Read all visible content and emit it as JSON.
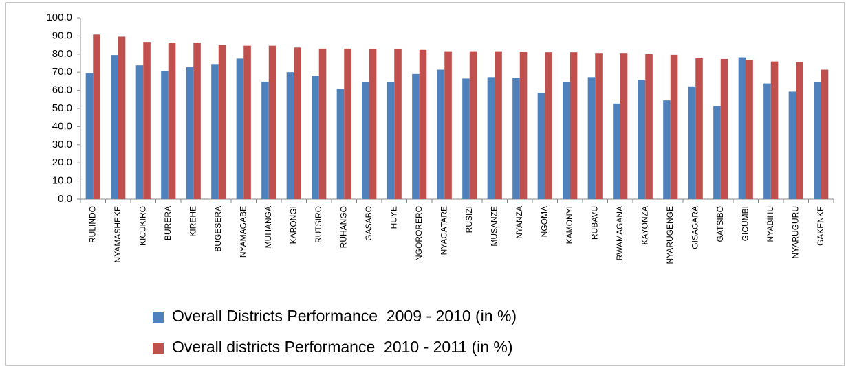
{
  "chart_data": {
    "type": "bar",
    "categories": [
      "RULINDO",
      "NYAMASHEKE",
      "KICUKIRO",
      "BURERA",
      "KIREHE",
      "BUGESERA",
      "NYAMAGABE",
      "MUHANGA",
      "KARONGI",
      "RUTSIRO",
      "RUHANGO",
      "GASABO",
      "HUYE",
      "NGORORERO",
      "NYAGATARE",
      "RUSIZI",
      "MUSANZE",
      "NYANZA",
      "NGOMA",
      "KAMONYI",
      "RUBAVU",
      "RWAMAGANA",
      "KAYONZA",
      "NYARUGENGE",
      "GISAGARA",
      "GATSIBO",
      "GICUMBI",
      "NYABIHU",
      "NYARUGURU",
      "GAKENKE"
    ],
    "series": [
      {
        "name": "Overall Districts Performance  2009 - 2010 (in %)",
        "color": "#4f81bd",
        "values": [
          69.5,
          79.5,
          73.8,
          70.6,
          72.7,
          74.5,
          77.5,
          64.8,
          70.0,
          68.0,
          60.8,
          64.5,
          64.5,
          69.0,
          71.4,
          66.5,
          67.3,
          67.0,
          58.7,
          64.5,
          67.3,
          52.7,
          65.8,
          54.5,
          62.2,
          51.3,
          78.2,
          63.8,
          59.3,
          64.5
        ]
      },
      {
        "name": "Overall districts Performance  2010 - 2011 (in %)",
        "color": "#c0504d",
        "values": [
          90.8,
          89.6,
          86.7,
          86.3,
          86.3,
          85.0,
          84.6,
          84.6,
          83.6,
          83.0,
          83.0,
          82.7,
          82.7,
          82.3,
          81.6,
          81.6,
          81.6,
          81.3,
          81.0,
          81.0,
          80.6,
          80.6,
          80.0,
          79.6,
          77.7,
          77.3,
          76.9,
          75.9,
          75.6,
          71.4
        ]
      }
    ],
    "ylim": [
      0,
      100
    ],
    "yticks": [
      {
        "value": 0,
        "label": "0.0"
      },
      {
        "value": 10,
        "label": "10.0"
      },
      {
        "value": 20,
        "label": "20.0"
      },
      {
        "value": 30,
        "label": "30.0"
      },
      {
        "value": 40,
        "label": "40.0"
      },
      {
        "value": 50,
        "label": "50.0"
      },
      {
        "value": 60,
        "label": "60.0"
      },
      {
        "value": 70,
        "label": "70.0"
      },
      {
        "value": 80,
        "label": "80.0"
      },
      {
        "value": 90,
        "label": "90.0"
      },
      {
        "value": 100,
        "label": "100.0"
      }
    ],
    "grid": false,
    "legend": "bottom"
  }
}
